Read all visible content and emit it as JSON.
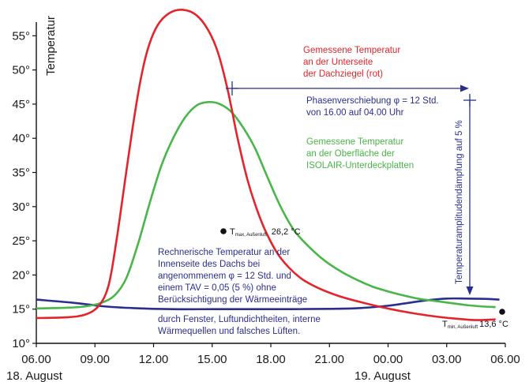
{
  "chart_data": {
    "type": "line",
    "ylabel": "Temperatur",
    "y_ticks": [
      "10°",
      "15°",
      "20°",
      "25°",
      "30°",
      "35°",
      "40°",
      "45°",
      "50°",
      "55°"
    ],
    "x_ticks": [
      "06.00",
      "09.00",
      "12.00",
      "15.00",
      "18.00",
      "21.00",
      "00.00",
      "03.00",
      "06.00"
    ],
    "dates": [
      "18. August",
      "19. August"
    ],
    "ylim": [
      10,
      57
    ],
    "xlim": [
      0,
      24
    ],
    "series": [
      {
        "name": "red",
        "color": "#e3242b",
        "x": [
          0,
          1.5,
          2.5,
          3.2,
          3.7,
          4.1,
          4.5,
          4.9,
          5.3,
          5.7,
          6.2,
          6.8,
          7.5,
          8.2,
          8.8,
          9.3,
          9.8,
          10.3,
          10.8,
          11.3,
          11.8,
          12.5,
          13.5,
          14.5,
          15.5,
          16.5,
          17.5,
          18.5,
          19.5,
          20.5,
          21.5,
          22.5,
          23.5
        ],
        "y": [
          13.7,
          13.8,
          14.2,
          15.5,
          18.5,
          25,
          33,
          41,
          48,
          53,
          56.5,
          58.3,
          58.8,
          58,
          55.8,
          52.5,
          47,
          40,
          34,
          29.5,
          26,
          22.5,
          19.6,
          18,
          16.9,
          16.1,
          15.4,
          14.8,
          14.3,
          13.9,
          13.6,
          13.4,
          13.5
        ]
      },
      {
        "name": "green",
        "color": "#4ab548",
        "x": [
          0,
          1.5,
          2.5,
          3.3,
          4.0,
          4.6,
          5.2,
          5.8,
          6.4,
          7.0,
          7.6,
          8.2,
          8.8,
          9.4,
          10.0,
          10.6,
          11.2,
          11.8,
          12.5,
          13.2,
          14.0,
          14.8,
          15.6,
          16.4,
          17.2,
          18.0,
          18.8,
          19.6,
          20.4,
          21.2,
          22.0,
          22.8,
          23.5
        ],
        "y": [
          15.1,
          15.2,
          15.4,
          15.9,
          17,
          19.5,
          24.5,
          30.5,
          36,
          40,
          43,
          44.8,
          45.3,
          45,
          43.8,
          41.5,
          38.5,
          34.5,
          30,
          26.5,
          24,
          22,
          20.5,
          19.3,
          18.3,
          17.6,
          17,
          16.5,
          16.2,
          15.9,
          15.6,
          15.4,
          15.3
        ]
      },
      {
        "name": "blue",
        "color": "#2a2f8f",
        "x": [
          0,
          2,
          3.5,
          5,
          7,
          9,
          11,
          13,
          15,
          16.5,
          18,
          19,
          20,
          21,
          22,
          23,
          23.7
        ],
        "y": [
          16.4,
          15.9,
          15.4,
          15.15,
          15,
          15,
          15,
          15,
          15.05,
          15.15,
          15.5,
          15.9,
          16.3,
          16.55,
          16.55,
          16.5,
          16.4
        ]
      }
    ],
    "markers": [
      {
        "label": "T",
        "sub": "max, Außenluft",
        "value": "26,2 °C"
      },
      {
        "label": "T",
        "sub": "min, Außenluft",
        "value": "13,6 °C"
      }
    ],
    "annotations": {
      "red_label": [
        "Gemessene Temperatur",
        "an der Unterseite",
        "der Dachziegel (rot)"
      ],
      "green_label": [
        "Gemessene Temperatur",
        "an der Oberfläche der",
        "ISOLAIR-Unterdeckplatten"
      ],
      "phase_label": [
        "Phasenverschiebung φ = 12 Std.",
        "von 16.00 auf 04.00 Uhr"
      ],
      "damping_label": "Temperaturamplitudendämpfung auf 5 %",
      "calc_label": [
        "Rechnerische Temperatur an der",
        "Innenseite des Dachs bei",
        "angenommenem φ = 12 Std. und",
        "einem TAV = 0,05 (5 %) ohne",
        "Berücksichtigung der Wärmeeinträge"
      ],
      "calc_label_2": [
        "durch Fenster, Luftundichtheiten, interne",
        "Wärmequellen und falsches Lüften."
      ]
    }
  }
}
